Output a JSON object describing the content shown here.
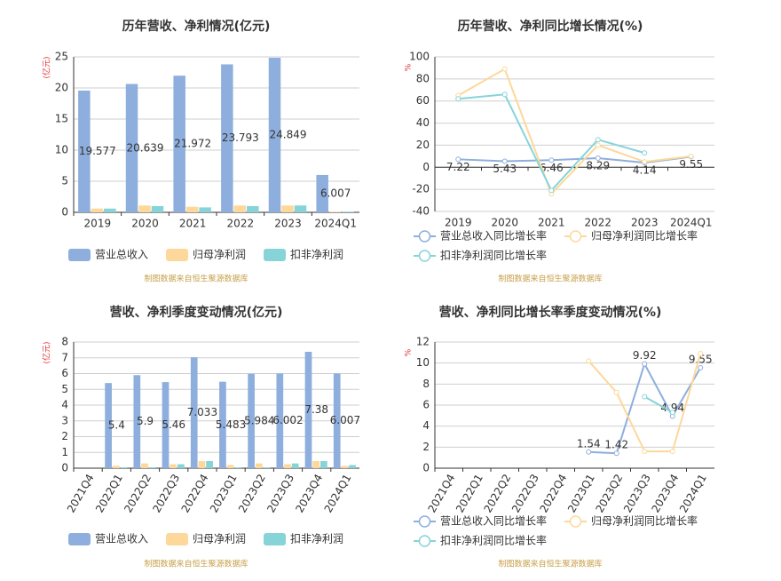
{
  "chart_data": [
    {
      "type": "bar",
      "title": "历年营收、净利情况(亿元)",
      "y_label": "(亿元)",
      "source": "制图数据来自恒生聚源数据库",
      "categories": [
        "2019",
        "2020",
        "2021",
        "2022",
        "2023",
        "2024Q1"
      ],
      "series": [
        {
          "name": "营业总收入",
          "color": "#8eaedd",
          "labels": true,
          "values": [
            19.577,
            20.639,
            21.972,
            23.793,
            24.849,
            6.007
          ]
        },
        {
          "name": "归母净利润",
          "color": "#fdd89a",
          "values": [
            0.6,
            1.1,
            0.9,
            1.1,
            1.1,
            0.1
          ]
        },
        {
          "name": "扣非净利润",
          "color": "#86d4d8",
          "values": [
            0.6,
            1.0,
            0.8,
            1.0,
            1.1,
            0.1
          ]
        }
      ],
      "ylim": [
        0,
        25
      ],
      "yticks": [
        0,
        5,
        10,
        15,
        20,
        25
      ],
      "grid": true
    },
    {
      "type": "line",
      "title": "历年营收、净利同比增长情况(%)",
      "y_label": "%",
      "source": "制图数据来自恒生聚源数据库",
      "categories": [
        "2019",
        "2020",
        "2021",
        "2022",
        "2023",
        "2024Q1"
      ],
      "series": [
        {
          "name": "营业总收入同比增长率",
          "color": "#8eaedd",
          "labels": true,
          "values": [
            7.22,
            5.43,
            6.46,
            8.29,
            4.14,
            9.55
          ]
        },
        {
          "name": "归母净利润同比增长率",
          "color": "#fdd89a",
          "values": [
            65,
            89,
            -24,
            20,
            5,
            10
          ]
        },
        {
          "name": "扣非净利润同比增长率",
          "color": "#86d4d8",
          "values": [
            62,
            66,
            -21,
            25,
            13,
            null
          ]
        }
      ],
      "ylim": [
        -40,
        100
      ],
      "yticks": [
        -40,
        -20,
        0,
        20,
        40,
        60,
        80,
        100
      ],
      "grid": true
    },
    {
      "type": "bar",
      "title": "营收、净利季度变动情况(亿元)",
      "y_label": "(亿元)",
      "source": "制图数据来自恒生聚源数据库",
      "categories": [
        "2021Q4",
        "2022Q1",
        "2022Q2",
        "2022Q3",
        "2022Q4",
        "2023Q1",
        "2023Q2",
        "2023Q3",
        "2023Q4",
        "2024Q1"
      ],
      "series": [
        {
          "name": "营业总收入",
          "color": "#8eaedd",
          "labels": true,
          "values": [
            null,
            5.4,
            5.9,
            5.46,
            7.033,
            5.483,
            5.984,
            6.002,
            7.38,
            6.007
          ]
        },
        {
          "name": "归母净利润",
          "color": "#fdd89a",
          "values": [
            null,
            0.15,
            0.3,
            0.25,
            0.45,
            0.2,
            0.3,
            0.25,
            0.45,
            0.15
          ]
        },
        {
          "name": "扣非净利润",
          "color": "#86d4d8",
          "values": [
            null,
            0.05,
            0.05,
            0.25,
            0.45,
            0.05,
            0.05,
            0.3,
            0.45,
            0.2
          ]
        }
      ],
      "ylim": [
        0,
        8
      ],
      "yticks": [
        0,
        1,
        2,
        3,
        4,
        5,
        6,
        7,
        8
      ],
      "grid": true
    },
    {
      "type": "line",
      "title": "营收、净利同比增长率季度变动情况(%)",
      "y_label": "%",
      "source": "制图数据来自恒生聚源数据库",
      "categories": [
        "2021Q4",
        "2022Q1",
        "2022Q2",
        "2022Q3",
        "2022Q4",
        "2023Q1",
        "2023Q2",
        "2023Q3",
        "2023Q4",
        "2024Q1"
      ],
      "series": [
        {
          "name": "营业总收入同比增长率",
          "color": "#8eaedd",
          "labels": true,
          "values": [
            null,
            null,
            null,
            null,
            null,
            1.54,
            1.42,
            9.92,
            4.94,
            9.55
          ]
        },
        {
          "name": "归母净利润同比增长率",
          "color": "#fdd89a",
          "values": [
            null,
            null,
            null,
            null,
            null,
            10.2,
            7.2,
            1.6,
            1.6,
            10.9
          ]
        },
        {
          "name": "扣非净利润同比增长率",
          "color": "#86d4d8",
          "values": [
            null,
            null,
            null,
            null,
            null,
            null,
            null,
            6.8,
            5.3,
            null
          ]
        }
      ],
      "ylim": [
        0,
        12
      ],
      "yticks": [
        0,
        2,
        4,
        6,
        8,
        10,
        12
      ],
      "grid": true
    }
  ]
}
